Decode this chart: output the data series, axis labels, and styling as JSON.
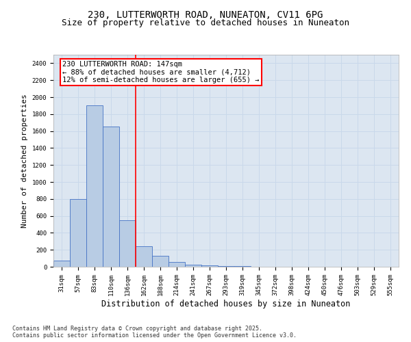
{
  "title_line1": "230, LUTTERWORTH ROAD, NUNEATON, CV11 6PG",
  "title_line2": "Size of property relative to detached houses in Nuneaton",
  "xlabel": "Distribution of detached houses by size in Nuneaton",
  "ylabel": "Number of detached properties",
  "categories": [
    "31sqm",
    "57sqm",
    "83sqm",
    "110sqm",
    "136sqm",
    "162sqm",
    "188sqm",
    "214sqm",
    "241sqm",
    "267sqm",
    "293sqm",
    "319sqm",
    "345sqm",
    "372sqm",
    "398sqm",
    "424sqm",
    "450sqm",
    "476sqm",
    "503sqm",
    "529sqm",
    "555sqm"
  ],
  "values": [
    70,
    800,
    1900,
    1650,
    550,
    240,
    130,
    55,
    25,
    15,
    8,
    5,
    3,
    2,
    1,
    1,
    0,
    0,
    0,
    0,
    0
  ],
  "bar_color": "#b8cce4",
  "bar_edge_color": "#4472c4",
  "grid_color": "#c9d8ea",
  "background_color": "#dce6f1",
  "annotation_box_text_line1": "230 LUTTERWORTH ROAD: 147sqm",
  "annotation_box_text_line2": "← 88% of detached houses are smaller (4,712)",
  "annotation_box_text_line3": "12% of semi-detached houses are larger (655) →",
  "vline_x_index": 4.5,
  "ylim": [
    0,
    2500
  ],
  "yticks": [
    0,
    200,
    400,
    600,
    800,
    1000,
    1200,
    1400,
    1600,
    1800,
    2000,
    2200,
    2400
  ],
  "footer_line1": "Contains HM Land Registry data © Crown copyright and database right 2025.",
  "footer_line2": "Contains public sector information licensed under the Open Government Licence v3.0.",
  "title_fontsize": 10,
  "subtitle_fontsize": 9,
  "axis_label_fontsize": 8,
  "tick_fontsize": 6.5,
  "annotation_fontsize": 7.5,
  "footer_fontsize": 6
}
